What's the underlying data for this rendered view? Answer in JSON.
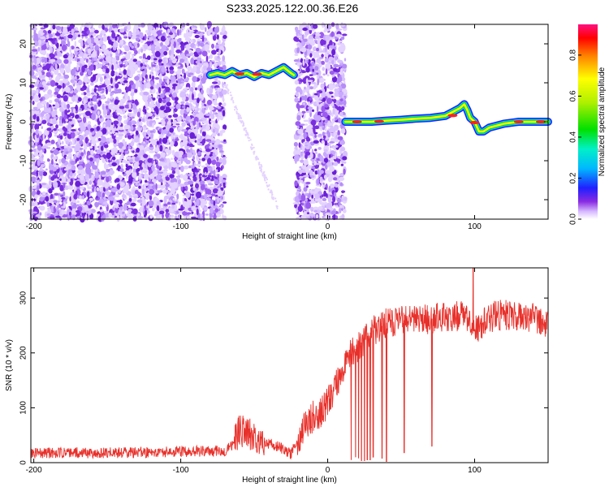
{
  "title": "S233.2025.122.00.36.E26",
  "colors": {
    "snr_line": "#e8302a",
    "scatter": "#7a2ee0",
    "axis": "#000000"
  },
  "chart_data": [
    {
      "type": "heatmap",
      "name": "spectrogram",
      "xlabel": "Height of straight line (km)",
      "ylabel": "Frequency (Hz)",
      "xlim": [
        -202,
        150
      ],
      "ylim": [
        -25,
        25
      ],
      "xticks": [
        -200,
        -100,
        0,
        100
      ],
      "xtick_labels": [
        "-200",
        "-100",
        "0",
        "100"
      ],
      "yticks": [
        -20,
        -10,
        0,
        10,
        20
      ],
      "ytick_labels": [
        "-20",
        "-10",
        "0",
        "10",
        "20"
      ],
      "colorbar": {
        "label": "Normalized spectral amplitude",
        "range": [
          0,
          0.95
        ],
        "ticks": [
          0.0,
          0.2,
          0.4,
          0.6,
          0.8
        ],
        "tick_labels": [
          "0.0",
          "0.2",
          "0.4",
          "0.6",
          "0.8"
        ],
        "colormap": "rainbow"
      },
      "signal_track": {
        "x": [
          -80,
          -75,
          -70,
          -65,
          -60,
          -55,
          -50,
          -45,
          -40,
          -35,
          -30,
          -25,
          -23,
          null,
          12,
          20,
          30,
          40,
          50,
          60,
          70,
          80,
          85,
          90,
          93,
          95,
          97,
          100,
          103,
          106,
          110,
          120,
          130,
          140,
          150
        ],
        "y": [
          12,
          12.5,
          12,
          13,
          12,
          12.5,
          11.5,
          12.5,
          12,
          13,
          14,
          12.5,
          12,
          null,
          0,
          0,
          0,
          0.3,
          0.5,
          0.8,
          1.0,
          1.5,
          2.5,
          3.5,
          4.5,
          3,
          1,
          0,
          -2.5,
          -2.5,
          -1.5,
          -0.5,
          0,
          0,
          0
        ]
      },
      "noise_regions_x": [
        [
          -202,
          -70
        ],
        [
          -22,
          12
        ]
      ],
      "clear_region_x": [
        -70,
        -22
      ]
    },
    {
      "type": "line",
      "name": "snr",
      "xlabel": "Height of straight line (km)",
      "ylabel": "SNR (10 * v/v)",
      "xlim": [
        -202,
        150
      ],
      "ylim": [
        0,
        355
      ],
      "xticks": [
        -200,
        -100,
        0,
        100
      ],
      "xtick_labels": [
        "-200",
        "-100",
        "0",
        "100"
      ],
      "yticks": [
        0,
        100,
        200,
        300
      ],
      "ytick_labels": [
        "0",
        "100",
        "200",
        "300"
      ],
      "envelope": {
        "x": [
          -202,
          -150,
          -100,
          -70,
          -65,
          -63,
          -60,
          -50,
          -40,
          -30,
          -25,
          -20,
          -15,
          -10,
          -5,
          0,
          5,
          10,
          15,
          20,
          25,
          30,
          35,
          40,
          50,
          60,
          70,
          80,
          90,
          95,
          100,
          105,
          110,
          120,
          130,
          140,
          150
        ],
        "y": [
          18,
          18,
          20,
          22,
          30,
          45,
          60,
          50,
          35,
          25,
          15,
          45,
          65,
          85,
          90,
          110,
          135,
          170,
          195,
          210,
          225,
          240,
          245,
          255,
          260,
          258,
          262,
          265,
          268,
          262,
          240,
          250,
          265,
          270,
          268,
          265,
          255
        ]
      },
      "dropouts": [
        {
          "x": 16,
          "y": 5
        },
        {
          "x": 19,
          "y": 10
        },
        {
          "x": 21,
          "y": 8
        },
        {
          "x": 23,
          "y": 3
        },
        {
          "x": 25,
          "y": 3
        },
        {
          "x": 27,
          "y": 5
        },
        {
          "x": 29,
          "y": 5
        },
        {
          "x": 31,
          "y": 10
        },
        {
          "x": 37,
          "y": 8
        },
        {
          "x": 40,
          "y": 2
        },
        {
          "x": 52,
          "y": 18
        },
        {
          "x": 71,
          "y": 30
        }
      ],
      "spike": {
        "x": 99,
        "y": 355
      }
    }
  ]
}
